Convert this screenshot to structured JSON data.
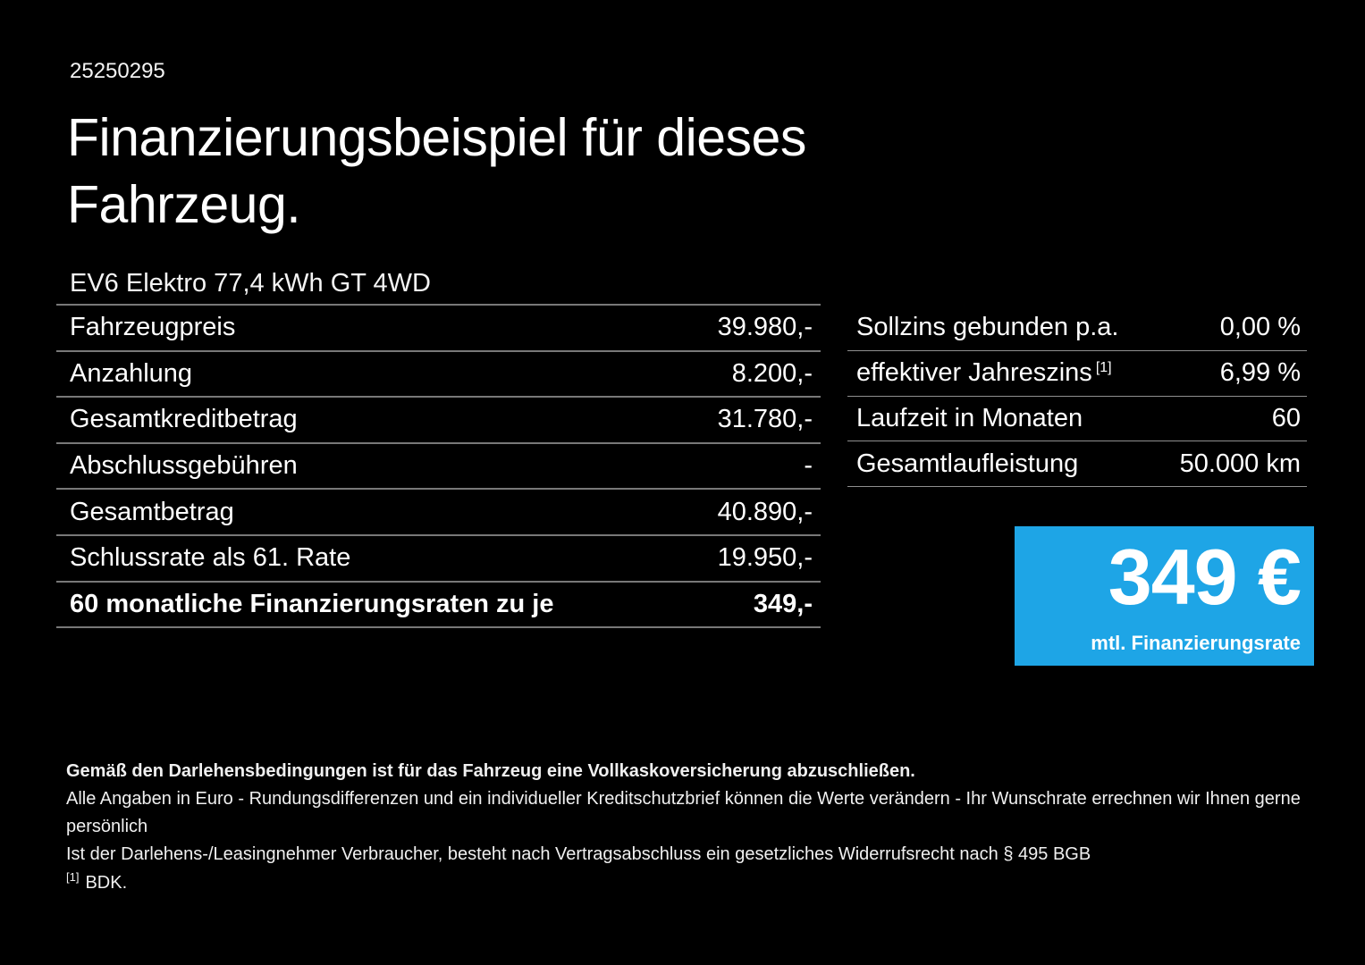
{
  "page": {
    "reference_number": "25250295",
    "title_line1": "Finanzierungsbeispiel für dieses",
    "title_line2": "Fahrzeug.",
    "vehicle_name": "EV6 Elektro 77,4 kWh GT 4WD"
  },
  "left_table": {
    "rows": [
      {
        "label": "Fahrzeugpreis",
        "value": "39.980,-"
      },
      {
        "label": "Anzahlung",
        "value": "8.200,-"
      },
      {
        "label": "Gesamtkreditbetrag",
        "value": "31.780,-"
      },
      {
        "label": "Abschlussgebühren",
        "value": "-"
      },
      {
        "label": "Gesamtbetrag",
        "value": "40.890,-"
      },
      {
        "label": "Schlussrate als 61. Rate",
        "value": "19.950,-"
      },
      {
        "label": "60 monatliche Finanzierungsraten zu je",
        "value": "349,-"
      }
    ]
  },
  "right_table": {
    "rows": [
      {
        "label": "Sollzins gebunden p.a.",
        "sup": "",
        "value": "0,00 %"
      },
      {
        "label": "effektiver Jahreszins",
        "sup": "[1]",
        "value": "6,99 %"
      },
      {
        "label": "Laufzeit in Monaten",
        "sup": "",
        "value": "60"
      },
      {
        "label": "Gesamtlaufleistung",
        "sup": "",
        "value": "50.000 km"
      }
    ]
  },
  "rate_box": {
    "amount": "349 €",
    "caption": "mtl. Finanzierungsrate",
    "background_color": "#1ea5e6"
  },
  "footnotes": {
    "insurance_note": "Gemäß den Darlehensbedingungen ist für das Fahrzeug eine Vollkaskoversicherung abzuschließen.",
    "line2": "Alle Angaben in Euro - Rundungsdifferenzen und ein individueller Kreditschutzbrief können die Werte verändern - Ihr Wunschrate errechnen wir Ihnen gerne persönlich",
    "line3": "Ist der Darlehens-/Leasingnehmer Verbraucher, besteht nach Vertragsabschluss ein gesetzliches Widerrufsrecht nach § 495 BGB",
    "footnote_marker": "[1]",
    "footnote_text": "BDK."
  },
  "colors": {
    "background": "#000000",
    "text": "#ffffff",
    "accent_blue": "#1ea5e6",
    "divider_left": "#787878",
    "divider_right": "#8f8f8f"
  }
}
